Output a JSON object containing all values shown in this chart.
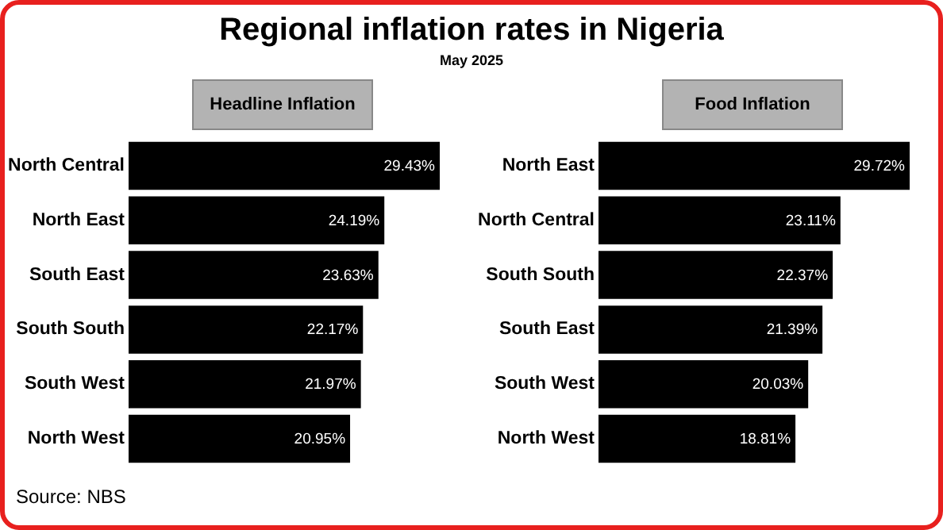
{
  "chart_data": [
    {
      "type": "other",
      "title": "Regional inflation rates in Nigeria",
      "subtitle": "May 2025",
      "annotations": [
        "Source: NBS"
      ]
    },
    {
      "type": "bar",
      "orientation": "horizontal",
      "title": "Headline Inflation",
      "categories": [
        "North Central",
        "North East",
        "South East",
        "South South",
        "South West",
        "North West"
      ],
      "values": [
        29.43,
        24.19,
        23.63,
        22.17,
        21.97,
        20.95
      ],
      "value_labels": [
        "29.43%",
        "24.19%",
        "23.63%",
        "22.17%",
        "21.97%",
        "20.95%"
      ],
      "color": "#000000"
    },
    {
      "type": "bar",
      "orientation": "horizontal",
      "title": "Food Inflation",
      "categories": [
        "North East",
        "North Central",
        "South South",
        "South East",
        "South West",
        "North West"
      ],
      "values": [
        29.72,
        23.11,
        22.37,
        21.39,
        20.03,
        18.81
      ],
      "value_labels": [
        "29.72%",
        "23.11%",
        "22.37%",
        "21.39%",
        "20.03%",
        "18.81%"
      ],
      "color": "#000000"
    }
  ]
}
